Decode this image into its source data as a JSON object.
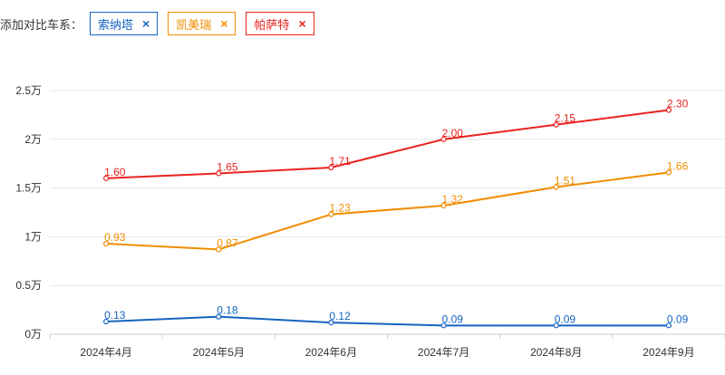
{
  "filter": {
    "label": "添加对比车系：",
    "tags": [
      {
        "label": "索纳塔",
        "color": "#1565C0",
        "close": "×",
        "close_icon": "close-icon"
      },
      {
        "label": "凯美瑞",
        "color": "#F18D00",
        "close": "×",
        "close_icon": "close-icon"
      },
      {
        "label": "帕萨特",
        "color": "#E8231F",
        "close": "×",
        "close_icon": "close-icon"
      }
    ]
  },
  "chart_data": {
    "type": "line",
    "categories": [
      "2024年4月",
      "2024年5月",
      "2024年6月",
      "2024年7月",
      "2024年8月",
      "2024年9月"
    ],
    "y_ticks": [
      {
        "value": 0,
        "label": "0万"
      },
      {
        "value": 0.5,
        "label": "0.5万"
      },
      {
        "value": 1,
        "label": "1万"
      },
      {
        "value": 1.5,
        "label": "1.5万"
      },
      {
        "value": 2,
        "label": "2万"
      },
      {
        "value": 2.5,
        "label": "2.5万"
      }
    ],
    "ylim": [
      0,
      2.5
    ],
    "unit": "万",
    "grid": true,
    "series": [
      {
        "name": "帕萨特",
        "color": "#E8231F",
        "values": [
          1.6,
          1.65,
          1.71,
          2.0,
          2.15,
          2.3
        ],
        "labels": [
          "1.60",
          "1.65",
          "1.71",
          "2.00",
          "2.15",
          "2.30"
        ]
      },
      {
        "name": "凯美瑞",
        "color": "#F18D00",
        "values": [
          0.93,
          0.87,
          1.23,
          1.32,
          1.51,
          1.66
        ],
        "labels": [
          "0.93",
          "0.87",
          "1.23",
          "1.32",
          "1.51",
          "1.66"
        ]
      },
      {
        "name": "索纳塔",
        "color": "#1565C0",
        "values": [
          0.13,
          0.18,
          0.12,
          0.09,
          0.09,
          0.09
        ],
        "labels": [
          "0.13",
          "0.18",
          "0.12",
          "0.09",
          "0.09",
          "0.09"
        ]
      }
    ]
  }
}
